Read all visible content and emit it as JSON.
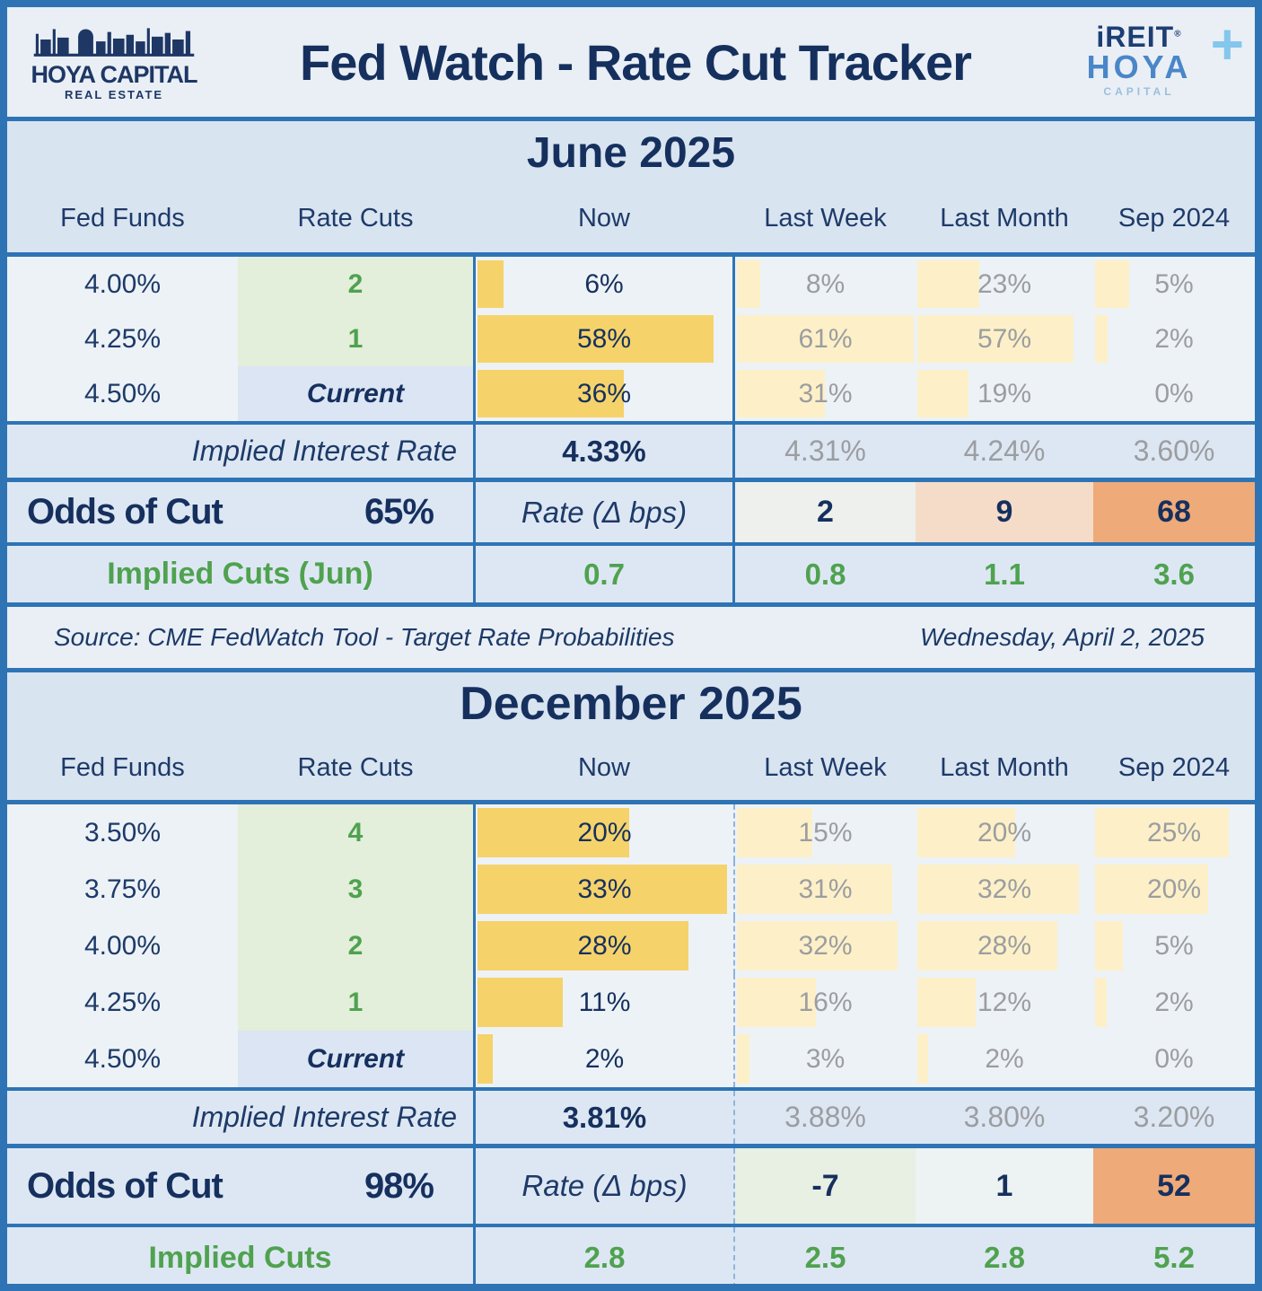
{
  "header": {
    "title": "Fed Watch - Rate Cut Tracker",
    "logo_left": {
      "line1": "HOYA CAPITAL",
      "line2": "REAL ESTATE"
    },
    "logo_right": {
      "line1": "iREIT",
      "reg": "®",
      "plus": "+",
      "line2": "HOYA",
      "line3": "CAPITAL"
    }
  },
  "columns": [
    "Fed Funds",
    "Rate Cuts",
    "Now",
    "Last Week",
    "Last Month",
    "Sep 2024"
  ],
  "colors": {
    "border_blue": "#2e74b5",
    "navy": "#16305e",
    "green": "#4fa24f",
    "gray": "#9b9da0",
    "bar_now": "#f5d36a",
    "bar_light": "#fdf0c8",
    "rate_cuts_bg": "#e3eedb",
    "current_bg": "#dbe5f4",
    "summary_bg": "#dde7f3",
    "orange": "#efaa79"
  },
  "june": {
    "title": "June 2025",
    "rows": [
      {
        "fed_funds": "4.00%",
        "rate_cuts": "2",
        "now": {
          "value": "6%",
          "bar": 10
        },
        "last_week": {
          "value": "8%",
          "bar": 13
        },
        "last_month": {
          "value": "23%",
          "bar": 35
        },
        "sep_2024": {
          "value": "5%",
          "bar": 21
        }
      },
      {
        "fed_funds": "4.25%",
        "rate_cuts": "1",
        "now": {
          "value": "58%",
          "bar": 92
        },
        "last_week": {
          "value": "61%",
          "bar": 98
        },
        "last_month": {
          "value": "57%",
          "bar": 88
        },
        "sep_2024": {
          "value": "2%",
          "bar": 8
        }
      },
      {
        "fed_funds": "4.50%",
        "rate_cuts": "Current",
        "now": {
          "value": "36%",
          "bar": 57
        },
        "last_week": {
          "value": "31%",
          "bar": 49
        },
        "last_month": {
          "value": "19%",
          "bar": 29
        },
        "sep_2024": {
          "value": "0%",
          "bar": 0
        }
      }
    ],
    "implied_rate": {
      "label": "Implied Interest Rate",
      "now": "4.33%",
      "last_week": "4.31%",
      "last_month": "4.24%",
      "sep_2024": "3.60%"
    },
    "odds": {
      "label": "Odds of Cut",
      "value": "65%",
      "rate_label": "Rate (Δ bps)",
      "last_week": {
        "value": "2",
        "bg": "#edf0ec"
      },
      "last_month": {
        "value": "9",
        "bg": "#f5dcc9"
      },
      "sep_2024": {
        "value": "68",
        "bg": "#efaa79"
      }
    },
    "implied_cuts": {
      "label": "Implied Cuts (Jun)",
      "now": "0.7",
      "last_week": "0.8",
      "last_month": "1.1",
      "sep_2024": "3.6"
    }
  },
  "source": {
    "text": "Source: CME FedWatch Tool - Target Rate Probabilities",
    "date": "Wednesday, April 2, 2025"
  },
  "december": {
    "title": "December 2025",
    "rows": [
      {
        "fed_funds": "3.50%",
        "rate_cuts": "4",
        "now": {
          "value": "20%",
          "bar": 59
        },
        "last_week": {
          "value": "15%",
          "bar": 42
        },
        "last_month": {
          "value": "20%",
          "bar": 55
        },
        "sep_2024": {
          "value": "25%",
          "bar": 83
        }
      },
      {
        "fed_funds": "3.75%",
        "rate_cuts": "3",
        "now": {
          "value": "33%",
          "bar": 97
        },
        "last_week": {
          "value": "31%",
          "bar": 86
        },
        "last_month": {
          "value": "32%",
          "bar": 91
        },
        "sep_2024": {
          "value": "20%",
          "bar": 70
        }
      },
      {
        "fed_funds": "4.00%",
        "rate_cuts": "2",
        "now": {
          "value": "28%",
          "bar": 82
        },
        "last_week": {
          "value": "32%",
          "bar": 89
        },
        "last_month": {
          "value": "28%",
          "bar": 79
        },
        "sep_2024": {
          "value": "5%",
          "bar": 17
        }
      },
      {
        "fed_funds": "4.25%",
        "rate_cuts": "1",
        "now": {
          "value": "11%",
          "bar": 33
        },
        "last_week": {
          "value": "16%",
          "bar": 44
        },
        "last_month": {
          "value": "12%",
          "bar": 33
        },
        "sep_2024": {
          "value": "2%",
          "bar": 7
        }
      },
      {
        "fed_funds": "4.50%",
        "rate_cuts": "Current",
        "now": {
          "value": "2%",
          "bar": 6
        },
        "last_week": {
          "value": "3%",
          "bar": 7
        },
        "last_month": {
          "value": "2%",
          "bar": 6
        },
        "sep_2024": {
          "value": "0%",
          "bar": 0
        }
      }
    ],
    "implied_rate": {
      "label": "Implied Interest Rate",
      "now": "3.81%",
      "last_week": "3.88%",
      "last_month": "3.80%",
      "sep_2024": "3.20%"
    },
    "odds": {
      "label": "Odds of Cut",
      "value": "98%",
      "rate_label": "Rate (Δ bps)",
      "last_week": {
        "value": "-7",
        "bg": "#e8efe3"
      },
      "last_month": {
        "value": "1",
        "bg": "#edf2f3"
      },
      "sep_2024": {
        "value": "52",
        "bg": "#efaa79"
      }
    },
    "implied_cuts": {
      "label": "Implied Cuts",
      "now": "2.8",
      "last_week": "2.5",
      "last_month": "2.8",
      "sep_2024": "5.2"
    }
  },
  "chart_data": [
    {
      "type": "table",
      "title": "June 2025",
      "columns": [
        "Fed Funds",
        "Rate Cuts",
        "Now",
        "Last Week",
        "Last Month",
        "Sep 2024"
      ],
      "rows": [
        [
          "4.00%",
          "2",
          "6%",
          "8%",
          "23%",
          "5%"
        ],
        [
          "4.25%",
          "1",
          "58%",
          "61%",
          "57%",
          "2%"
        ],
        [
          "4.50%",
          "Current",
          "36%",
          "31%",
          "19%",
          "0%"
        ]
      ],
      "implied_interest_rate": [
        "4.33%",
        "4.31%",
        "4.24%",
        "3.60%"
      ],
      "odds_of_cut": "65%",
      "rate_delta_bps": [
        2,
        9,
        68
      ],
      "implied_cuts": [
        0.7,
        0.8,
        1.1,
        3.6
      ]
    },
    {
      "type": "table",
      "title": "December 2025",
      "columns": [
        "Fed Funds",
        "Rate Cuts",
        "Now",
        "Last Week",
        "Last Month",
        "Sep 2024"
      ],
      "rows": [
        [
          "3.50%",
          "4",
          "20%",
          "15%",
          "20%",
          "25%"
        ],
        [
          "3.75%",
          "3",
          "33%",
          "31%",
          "32%",
          "20%"
        ],
        [
          "4.00%",
          "2",
          "28%",
          "32%",
          "28%",
          "5%"
        ],
        [
          "4.25%",
          "1",
          "11%",
          "16%",
          "12%",
          "2%"
        ],
        [
          "4.50%",
          "Current",
          "2%",
          "3%",
          "2%",
          "0%"
        ]
      ],
      "implied_interest_rate": [
        "3.81%",
        "3.88%",
        "3.80%",
        "3.20%"
      ],
      "odds_of_cut": "98%",
      "rate_delta_bps": [
        -7,
        1,
        52
      ],
      "implied_cuts": [
        2.8,
        2.5,
        2.8,
        5.2
      ]
    }
  ]
}
